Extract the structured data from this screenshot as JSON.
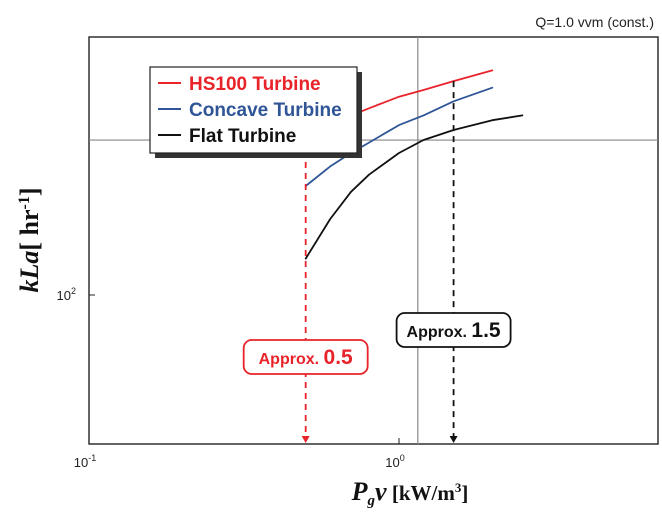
{
  "chart_data": {
    "type": "line",
    "note": "Q=1.0 vvm (const.)",
    "xlabel": {
      "main": "P",
      "sub": "g",
      "var": "v",
      "unit": " [kW/m",
      "unit_sup": "3",
      "unit_end": "]"
    },
    "ylabel": {
      "main": "kLa",
      "unit": "[ hr",
      "unit_sup": "-1",
      "unit_end": "]"
    },
    "x_ticks": [
      {
        "base": "10",
        "exp": "-1",
        "value": 0.1
      },
      {
        "base": "10",
        "exp": "0",
        "value": 1
      }
    ],
    "y_ticks": [
      {
        "base": "10",
        "exp": "2",
        "value": 100
      }
    ],
    "scale": {
      "x": "log",
      "y": "log"
    },
    "xlim": [
      0.1,
      2.0
    ],
    "ylim": [
      63,
      215
    ],
    "series": [
      {
        "name": "HS100 Turbine",
        "color": "#e8232a",
        "x": [
          0.5,
          0.6,
          0.7,
          0.8,
          1.0,
          1.2,
          1.5,
          2.0
        ],
        "y": [
          150,
          156,
          160,
          163,
          168,
          171,
          175,
          180
        ]
      },
      {
        "name": "Concave Turbine",
        "color": "#2f5597",
        "x": [
          0.5,
          0.6,
          0.7,
          0.8,
          1.0,
          1.2,
          1.5,
          2.0
        ],
        "y": [
          133,
          140,
          145,
          149,
          156,
          160,
          166,
          172
        ]
      },
      {
        "name": "Flat Turbine",
        "color": "#111111",
        "x": [
          0.5,
          0.6,
          0.7,
          0.8,
          1.0,
          1.2,
          1.5,
          2.0,
          2.5
        ],
        "y": [
          110,
          122,
          131,
          137,
          145,
          150,
          154,
          158,
          160
        ]
      }
    ],
    "reference_lines": {
      "horizontal_y": 150,
      "vertical_x": 1.15
    },
    "annotations": [
      {
        "prefix": "Approx.",
        "value": "0.5",
        "x": 0.5,
        "color": "#e8232a"
      },
      {
        "prefix": "Approx.",
        "value": "1.5",
        "x": 1.5,
        "color": "#111111"
      }
    ],
    "legend_position": "top-left",
    "grid": false
  }
}
